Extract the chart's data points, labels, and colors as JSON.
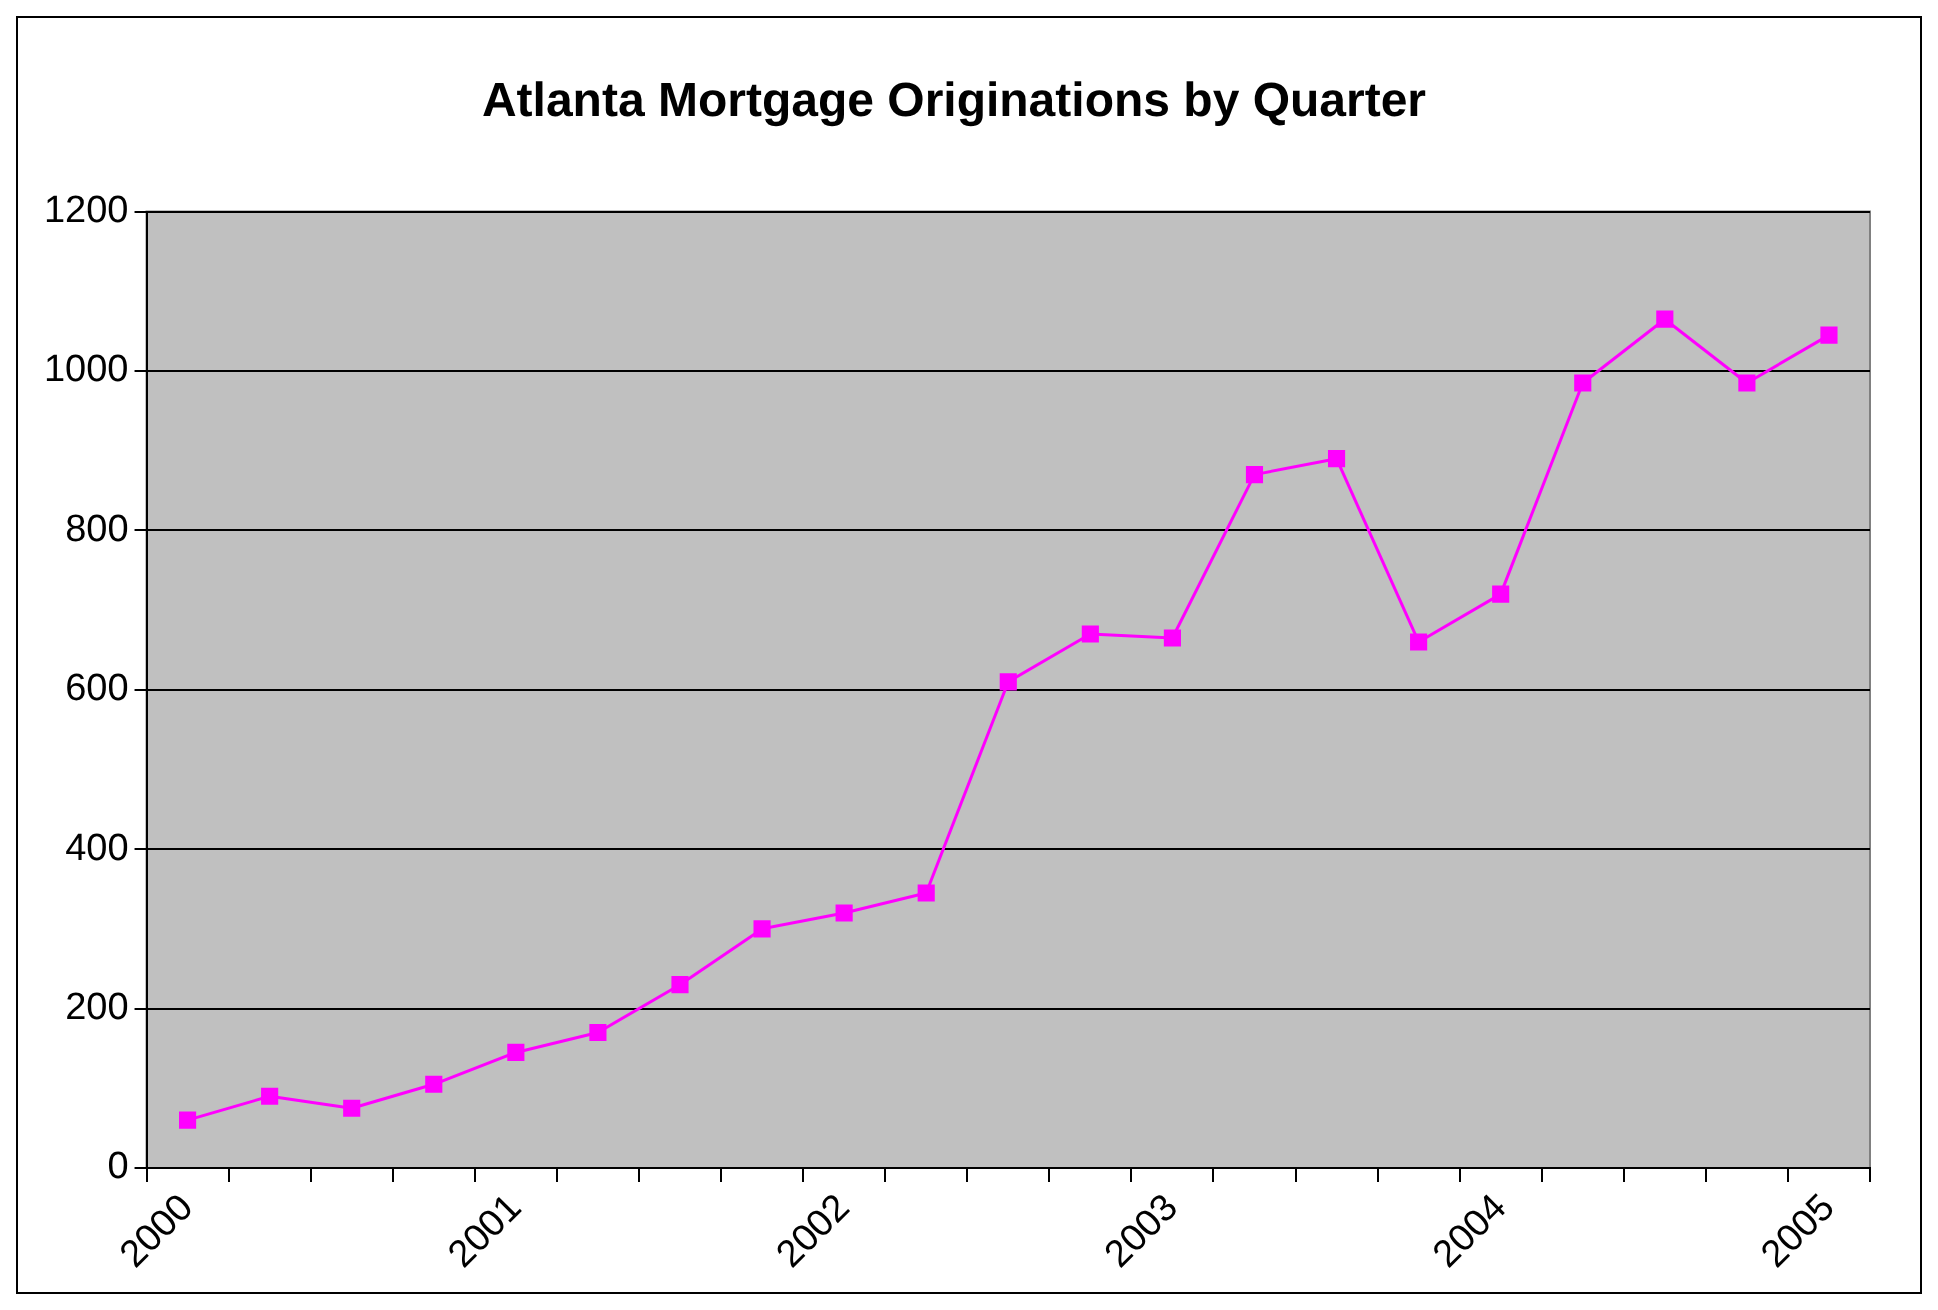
{
  "chart_data": {
    "type": "line",
    "title": "Atlanta Mortgage Originations by Quarter",
    "categories": [
      "2000",
      null,
      null,
      null,
      "2001",
      null,
      null,
      null,
      "2002",
      null,
      null,
      null,
      "2003",
      null,
      null,
      null,
      "2004",
      null,
      null,
      null,
      "2005"
    ],
    "series": [
      {
        "color": "#ff00ff",
        "values": [
          60,
          90,
          75,
          105,
          145,
          170,
          230,
          300,
          320,
          345,
          610,
          670,
          665,
          870,
          890,
          660,
          720,
          985,
          1065,
          985,
          1045
        ]
      }
    ],
    "ylim": [
      0,
      1200
    ],
    "yticks": [
      0,
      200,
      400,
      600,
      800,
      1000,
      1200
    ],
    "grid": "y",
    "legend": false,
    "marker": "square",
    "line_style": "solid"
  }
}
